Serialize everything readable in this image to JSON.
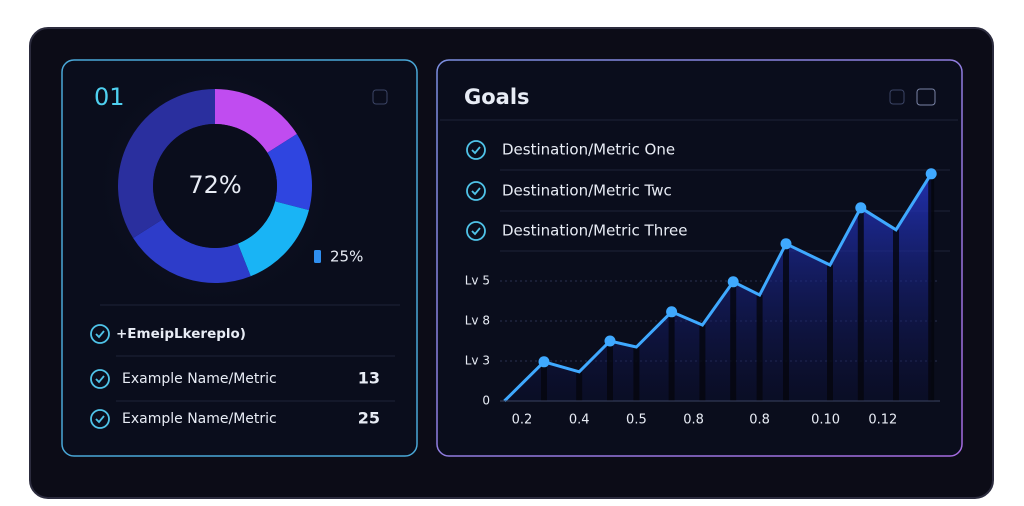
{
  "left_panel": {
    "title": "01",
    "chart_data": {
      "type": "pie",
      "center_label": "72%",
      "side_label": "25%",
      "values": [
        16,
        13,
        15,
        22,
        34
      ],
      "colors": [
        "#c04cf0",
        "#2f45e0",
        "#19b4f5",
        "#2d3cc9",
        "#2a2f9e"
      ]
    },
    "list": [
      {
        "label": "+EmeipLkereplo)"
      },
      {
        "label": "Example Name/Metric",
        "value": 13
      },
      {
        "label": "Example Name/Metric",
        "value": 25
      }
    ]
  },
  "right_panel": {
    "title": "Goals",
    "goals": [
      "Destination/Metric One",
      "Destination/Metric Twc",
      "Destination/Metric Three"
    ],
    "chart_data": {
      "type": "line",
      "color": "#3fa9ff",
      "x": [
        0.1,
        1.0,
        1.8,
        2.5,
        3.1,
        3.9,
        4.6,
        5.3,
        5.9,
        6.5,
        7.5,
        8.2,
        9.0,
        9.8
      ],
      "values": [
        0,
        0.98,
        0.73,
        1.5,
        1.35,
        2.23,
        1.9,
        2.98,
        2.65,
        3.93,
        3.4,
        4.83,
        4.28,
        5.68
      ],
      "xlim": [
        0,
        10
      ],
      "ylim": [
        0,
        5.8
      ],
      "xticks": [
        {
          "value": 0.5,
          "label": "0.2"
        },
        {
          "value": 1.8,
          "label": "0.4"
        },
        {
          "value": 3.1,
          "label": "0.5"
        },
        {
          "value": 4.4,
          "label": "0.8"
        },
        {
          "value": 5.9,
          "label": "0.8"
        },
        {
          "value": 7.4,
          "label": "0.10"
        },
        {
          "value": 8.7,
          "label": "0.12"
        }
      ],
      "yticks": [
        0,
        {
          "value": 1,
          "label": "Lv 3"
        },
        {
          "value": 2,
          "label": "Lv 8"
        },
        {
          "value": 3,
          "label": "Lv 5"
        }
      ],
      "grid": true
    }
  }
}
